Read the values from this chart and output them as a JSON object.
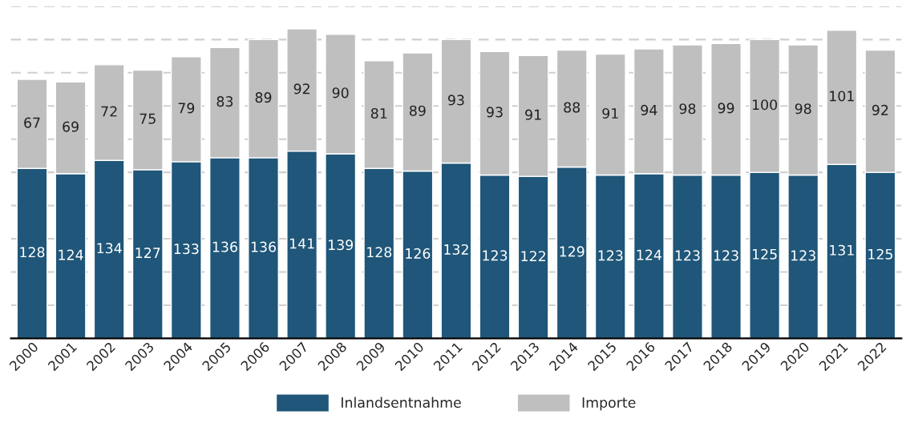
{
  "chart_data": {
    "type": "bar",
    "stacked": true,
    "data_labels": true,
    "grid": "y",
    "legend": "bottom",
    "tick_labels": "x",
    "categories": [
      "2000",
      "2001",
      "2002",
      "2003",
      "2004",
      "2005",
      "2006",
      "2007",
      "2008",
      "2009",
      "2010",
      "2011",
      "2012",
      "2013",
      "2014",
      "2015",
      "2016",
      "2017",
      "2018",
      "2019",
      "2020",
      "2021",
      "2022"
    ],
    "ylim": [
      0,
      250
    ],
    "yticks": [
      {
        "value": 0,
        "label": null
      },
      {
        "value": 25,
        "label": null
      },
      {
        "value": 50,
        "label": null
      },
      {
        "value": 75,
        "label": null
      },
      {
        "value": 100,
        "label": null
      },
      {
        "value": 125,
        "label": null
      },
      {
        "value": 150,
        "label": null
      },
      {
        "value": 175,
        "label": null
      },
      {
        "value": 200,
        "label": null
      },
      {
        "value": 225,
        "label": null
      },
      {
        "value": 250,
        "label": null
      }
    ],
    "series": [
      {
        "name": "Inlandsentnahme",
        "color": "#1f5679",
        "values": [
          128,
          124,
          134,
          127,
          133,
          136,
          136,
          141,
          139,
          128,
          126,
          132,
          123,
          122,
          129,
          123,
          124,
          123,
          123,
          125,
          123,
          131,
          125
        ]
      },
      {
        "name": "Importe",
        "color": "#bfbfbf",
        "values": [
          67,
          69,
          72,
          75,
          79,
          83,
          89,
          92,
          90,
          81,
          89,
          93,
          93,
          91,
          88,
          91,
          94,
          98,
          99,
          100,
          98,
          101,
          92
        ]
      }
    ]
  }
}
